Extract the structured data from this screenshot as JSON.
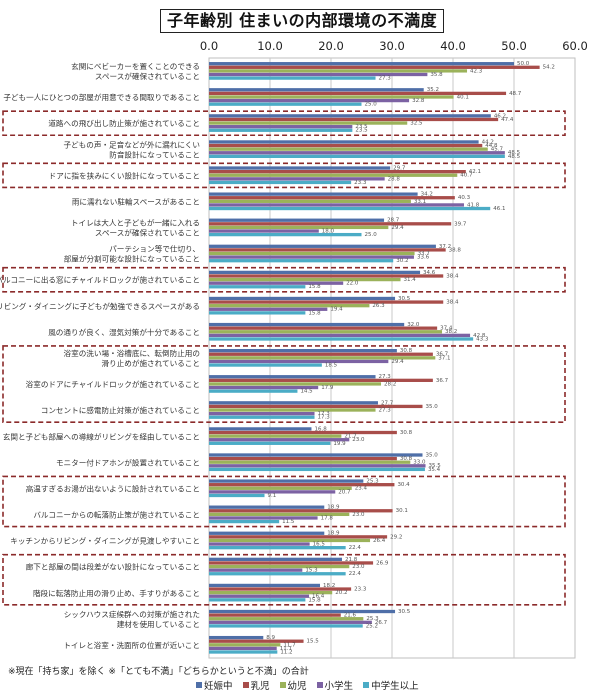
{
  "chart_data": {
    "type": "bar",
    "orientation": "horizontal",
    "title": "子年齢別  住まいの内部環境の不満度",
    "xlabel": "",
    "ylabel": "",
    "xlim": [
      0,
      60
    ],
    "xticks": [
      "0.0",
      "10.0",
      "20.0",
      "30.0",
      "40.0",
      "50.0",
      "60.0"
    ],
    "grid": true,
    "legend_position": "bottom",
    "categories": [
      [
        "玄関にベビーカーを置くことのできる",
        "スペースが確保されていること"
      ],
      [
        "子ども一人にひとつの部屋が用意できる間取りであること"
      ],
      [
        "道路への飛び出し防止策が施されていること"
      ],
      [
        "子どもの声・足音などが外に漏れにくい",
        "防音設計になっていること"
      ],
      [
        "ドアに指を挟みにくい設計になっていること"
      ],
      [
        "雨に濡れない駐輪スペースがあること"
      ],
      [
        "トイレは大人と子どもが一緒に入れる",
        "スペースが確保されていること"
      ],
      [
        "パーテション等で仕切り、",
        "部屋が分割可能な設計になっていること"
      ],
      [
        "バルコニーに出る窓にチャイルドロックが施されていること"
      ],
      [
        "リビング・ダイニングに子どもが勉強できるスペースがある"
      ],
      [
        "風の通りが良く、湿気対策が十分であること"
      ],
      [
        "浴室の洗い場・浴槽底に、転倒防止用の",
        "滑り止めが施されていること"
      ],
      [
        "浴室のドアにチャイルドロックが施されていること"
      ],
      [
        "コンセントに感電防止対策が施されていること"
      ],
      [
        "玄関と子ども部屋への導線がリビングを経由していること"
      ],
      [
        "モニター付ドアホンが設置されていること"
      ],
      [
        "高温すぎるお湯が出ないように設計されていること"
      ],
      [
        "バルコニーからの転落防止策が施されていること"
      ],
      [
        "キッチンからリビング・ダイニングが見渡しやすいこと"
      ],
      [
        "廊下と部屋の間は段差がない設計になっていること"
      ],
      [
        "階段に転落防止用の滑り止め、手すりがあること"
      ],
      [
        "シックハウス症候群への対策が施された",
        "建材を使用していること"
      ],
      [
        "トイレと浴室・洗面所の位置が近いこと"
      ]
    ],
    "highlight_groups": [
      [
        2
      ],
      [
        4
      ],
      [
        8
      ],
      [
        11,
        12,
        13
      ],
      [
        16,
        17
      ],
      [
        19,
        20
      ]
    ],
    "series": [
      {
        "name": "妊娠中",
        "color": "#4F6FA8",
        "values": [
          50.0,
          35.2,
          46.2,
          44.2,
          29.7,
          34.2,
          28.7,
          37.2,
          34.6,
          30.5,
          32.0,
          30.8,
          27.3,
          27.7,
          16.8,
          35.0,
          25.3,
          18.9,
          18.9,
          21.8,
          18.2,
          30.5,
          8.9
        ]
      },
      {
        "name": "乳児",
        "color": "#A84D4A",
        "values": [
          54.2,
          48.7,
          47.4,
          44.8,
          42.1,
          40.3,
          39.7,
          38.8,
          38.4,
          38.4,
          37.4,
          36.7,
          36.7,
          35.0,
          30.8,
          30.8,
          30.4,
          30.1,
          29.2,
          26.9,
          23.3,
          21.6,
          15.5
        ]
      },
      {
        "name": "幼児",
        "color": "#9BB25A",
        "values": [
          42.3,
          40.1,
          32.5,
          45.7,
          40.7,
          33.1,
          29.4,
          33.7,
          31.4,
          26.3,
          38.2,
          37.1,
          28.2,
          27.3,
          21.7,
          33.0,
          23.4,
          23.0,
          26.4,
          23.0,
          20.2,
          25.3,
          11.7
        ]
      },
      {
        "name": "小学生",
        "color": "#7C62A3",
        "values": [
          35.8,
          32.8,
          23.5,
          48.5,
          28.8,
          41.8,
          18.0,
          33.6,
          22.0,
          19.4,
          42.8,
          29.4,
          17.9,
          17.3,
          23.0,
          35.5,
          20.7,
          17.8,
          16.5,
          15.3,
          16.4,
          26.7,
          11.1
        ]
      },
      {
        "name": "中学生以上",
        "color": "#4BACC6",
        "values": [
          27.3,
          25.0,
          23.5,
          48.5,
          23.3,
          46.1,
          25.0,
          30.2,
          15.8,
          15.8,
          43.3,
          18.5,
          14.5,
          17.3,
          19.9,
          35.4,
          9.1,
          11.5,
          22.4,
          22.4,
          15.8,
          25.2,
          11.2
        ]
      }
    ]
  },
  "footnote": "※現在「持ち家」を除く ※「とても不満」「どちらかというと不満」の合計"
}
